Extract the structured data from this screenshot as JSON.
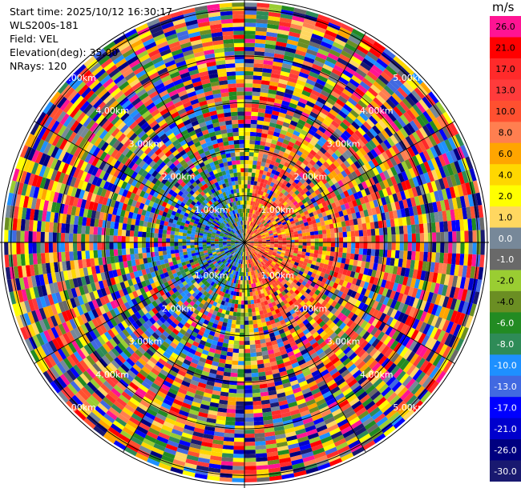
{
  "header": {
    "start_time": "Start time: 2025/10/12 16:30:17",
    "instrument": "WLS200s-181",
    "field": "Field: VEL",
    "elevation": "Elevation(deg): 35.00",
    "nrays": "NRays: 120"
  },
  "colorbar": {
    "unit": "m/s",
    "labels": [
      "26.0",
      "21.0",
      "17.0",
      "13.0",
      "10.0",
      "8.0",
      "6.0",
      "4.0",
      "2.0",
      "1.0",
      "0.0",
      "-1.0",
      "-2.0",
      "-4.0",
      "-6.0",
      "-8.0",
      "-10.0",
      "-13.0",
      "-17.0",
      "-21.0",
      "-26.0",
      "-30.0"
    ],
    "colors": [
      "#ff1493",
      "#ff0000",
      "#ff2a2a",
      "#ff3b3b",
      "#ff5030",
      "#ff7f50",
      "#ffa500",
      "#ffd700",
      "#ffff00",
      "#ffd760",
      "#778899",
      "#696969",
      "#9acd32",
      "#6b8e23",
      "#228b22",
      "#2e8b57",
      "#1e90ff",
      "#4169e1",
      "#0000ff",
      "#0000cd",
      "#000080",
      "#191970"
    ]
  },
  "chart_data": {
    "type": "ppi",
    "range_rings_km": [
      1.0,
      2.0,
      3.0,
      4.0,
      5.0
    ],
    "ring_labels": [
      "1.00km",
      "2.00km",
      "3.00km",
      "4.00km",
      "5.00km"
    ],
    "max_range_km": 5.2,
    "n_rays": 120,
    "spokes_deg": [
      0,
      30,
      60,
      90,
      120,
      150,
      180,
      210,
      240,
      270,
      300,
      330
    ]
  }
}
